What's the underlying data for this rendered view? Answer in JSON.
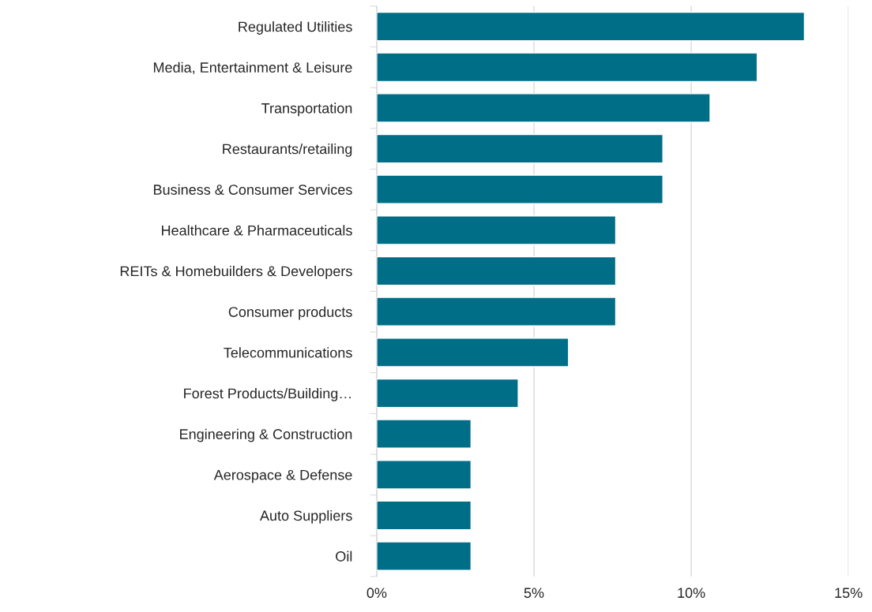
{
  "chart_data": {
    "type": "bar",
    "orientation": "horizontal",
    "categories": [
      "Regulated Utilities",
      "Media, Entertainment & Leisure",
      "Transportation",
      "Restaurants/retailing",
      "Business & Consumer Services",
      "Healthcare & Pharmaceuticals",
      "REITs & Homebuilders & Developers",
      "Consumer products",
      "Telecommunications",
      "Forest Products/Building…",
      "Engineering & Construction",
      "Aerospace & Defense",
      "Auto Suppliers",
      "Oil"
    ],
    "values": [
      13.6,
      12.1,
      10.6,
      9.1,
      9.1,
      7.6,
      7.6,
      7.6,
      6.1,
      4.5,
      3.0,
      3.0,
      3.0,
      3.0
    ],
    "color": "#006e87",
    "xlim": [
      0,
      15
    ],
    "xticks": [
      {
        "value": 0,
        "label": "0%"
      },
      {
        "value": 5,
        "label": "5%"
      },
      {
        "value": 10,
        "label": "10%"
      },
      {
        "value": 15,
        "label": "15%"
      }
    ],
    "grid": "x",
    "legend": false
  }
}
